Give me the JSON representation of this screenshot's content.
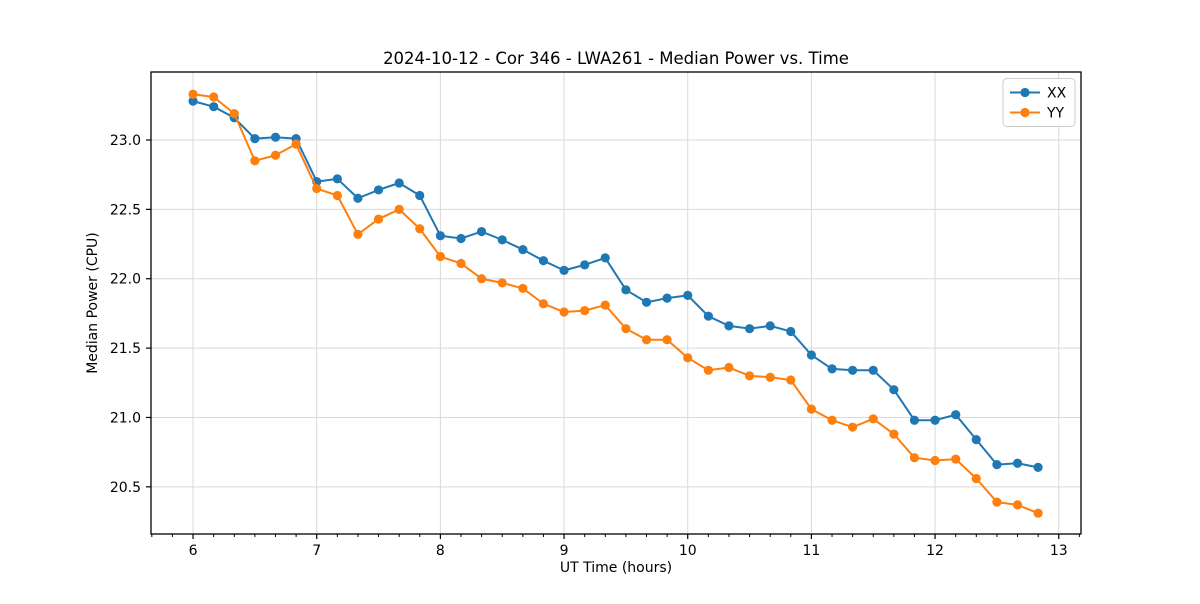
{
  "figure": {
    "background": "#ffffff"
  },
  "chart_data": {
    "type": "line",
    "title": "2024-10-12 - Cor 346 - LWA261 - Median Power vs. Time",
    "xlabel": "UT Time (hours)",
    "ylabel": "Median Power (CPU)",
    "xlim": [
      5.66,
      13.18
    ],
    "ylim": [
      20.16,
      23.49
    ],
    "xticks": [
      6,
      7,
      8,
      9,
      10,
      11,
      12,
      13
    ],
    "xtick_labels": [
      "6",
      "7",
      "8",
      "9",
      "10",
      "11",
      "12",
      "13"
    ],
    "yticks": [
      20.5,
      21.0,
      21.5,
      22.0,
      22.5,
      23.0
    ],
    "ytick_labels": [
      "20.5",
      "21.0",
      "21.5",
      "22.0",
      "22.5",
      "23.0"
    ],
    "minor_xtick_step": 0.16667,
    "grid": true,
    "grid_color": "#d9d9d9",
    "spine_color": "#000000",
    "legend_position": "upper right",
    "legend_labels": [
      "XX",
      "YY"
    ],
    "x": [
      6.0,
      6.167,
      6.333,
      6.5,
      6.667,
      6.833,
      7.0,
      7.167,
      7.333,
      7.5,
      7.667,
      7.833,
      8.0,
      8.167,
      8.333,
      8.5,
      8.667,
      8.833,
      9.0,
      9.167,
      9.333,
      9.5,
      9.667,
      9.833,
      10.0,
      10.167,
      10.333,
      10.5,
      10.667,
      10.833,
      11.0,
      11.167,
      11.333,
      11.5,
      11.667,
      11.833,
      12.0,
      12.167,
      12.333,
      12.5,
      12.667,
      12.833
    ],
    "series": [
      {
        "name": "XX",
        "color": "#1f77b4",
        "values": [
          23.28,
          23.24,
          23.16,
          23.01,
          23.02,
          23.01,
          22.7,
          22.72,
          22.58,
          22.64,
          22.69,
          22.6,
          22.31,
          22.29,
          22.34,
          22.28,
          22.21,
          22.13,
          22.06,
          22.1,
          22.15,
          21.92,
          21.83,
          21.86,
          21.88,
          21.73,
          21.66,
          21.64,
          21.66,
          21.62,
          21.45,
          21.35,
          21.34,
          21.34,
          21.2,
          20.98,
          20.98,
          21.02,
          20.84,
          20.66,
          20.67,
          20.64
        ]
      },
      {
        "name": "YY",
        "color": "#ff7f0e",
        "values": [
          23.33,
          23.31,
          23.19,
          22.85,
          22.89,
          22.97,
          22.65,
          22.6,
          22.32,
          22.43,
          22.5,
          22.36,
          22.16,
          22.11,
          22.0,
          21.97,
          21.93,
          21.82,
          21.76,
          21.77,
          21.81,
          21.64,
          21.56,
          21.56,
          21.43,
          21.34,
          21.36,
          21.3,
          21.29,
          21.27,
          21.06,
          20.98,
          20.93,
          20.99,
          20.88,
          20.71,
          20.69,
          20.7,
          20.56,
          20.39,
          20.37,
          20.31
        ]
      }
    ]
  }
}
